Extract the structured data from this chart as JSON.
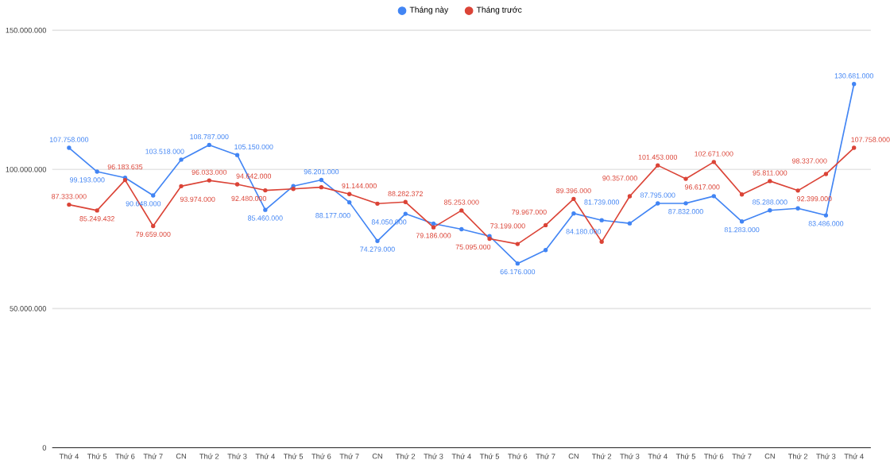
{
  "chart_data": {
    "type": "line",
    "categories": [
      "Thứ 4",
      "Thứ 5",
      "Thứ 6",
      "Thứ 7",
      "CN",
      "Thứ 2",
      "Thứ 3",
      "Thứ 4",
      "Thứ 5",
      "Thứ 6",
      "Thứ 7",
      "CN",
      "Thứ 2",
      "Thứ 3",
      "Thứ 4",
      "Thứ 5",
      "Thứ 6",
      "Thứ 7",
      "CN",
      "Thứ 2",
      "Thứ 3",
      "Thứ 4",
      "Thứ 5",
      "Thứ 6",
      "Thứ 7",
      "CN",
      "Thứ 2",
      "Thứ 3",
      "Thứ 4"
    ],
    "series": [
      {
        "name": "Tháng này",
        "color": "#4285f4",
        "values": [
          107758000,
          99193000,
          97000000,
          90648000,
          103518000,
          108787000,
          105150000,
          85460000,
          94000000,
          96201000,
          88177000,
          74279000,
          84050000,
          80500000,
          78500000,
          76000000,
          66176000,
          71000000,
          84180000,
          81739000,
          80600000,
          87795000,
          87832000,
          90400000,
          81283000,
          85288000,
          86000000,
          83486000,
          130681000
        ],
        "value_labels": [
          "107.758.000",
          "99.193.000",
          null,
          "90.648.000",
          "103.518.000",
          "108.787.000",
          "105.150.000",
          "85.460.000",
          null,
          "96.201.000",
          "88.177.000",
          "74.279.000",
          "84.050.000",
          null,
          null,
          null,
          "66.176.000",
          null,
          "84.180.000",
          "81.739.000",
          null,
          "87.795.000",
          "87.832.000",
          null,
          "81.283.000",
          "85.288.000",
          null,
          "83.486.000",
          "130.681.000"
        ]
      },
      {
        "name": "Tháng trước",
        "color": "#db4437",
        "values": [
          87333000,
          85249432,
          96183635,
          79659000,
          93974000,
          96033000,
          94642000,
          92480000,
          93000000,
          93600000,
          91144000,
          87700000,
          88282372,
          79186000,
          85253000,
          75095000,
          73199000,
          79967000,
          89396000,
          74000000,
          90357000,
          101453000,
          96617000,
          102671000,
          91000000,
          95811000,
          92399000,
          98337000,
          107758000
        ],
        "value_labels": [
          "87.333.000",
          "85.249.432",
          "96.183.635",
          "79.659.000",
          "93.974.000",
          "96.033.000",
          "94.642.000",
          "92.480.000",
          null,
          null,
          "91.144.000",
          null,
          "88.282.372",
          "79.186.000",
          "85.253.000",
          "75.095.000",
          "73.199.000",
          "79.967.000",
          "89.396.000",
          null,
          "90.357.000",
          "101.453.000",
          "96.617.000",
          "102.671.000",
          null,
          "95.811.000",
          "92.399.000",
          "98.337.000",
          "107.758.000"
        ]
      }
    ],
    "ylim": [
      0,
      150000000
    ],
    "yticks": [
      0,
      {
        "value": 50000000,
        "label": "50.000.000"
      },
      {
        "value": 100000000,
        "label": "100.000.000"
      },
      {
        "value": 150000000,
        "label": "150.000.000"
      }
    ],
    "grid": "y",
    "legend": "top",
    "marker": "circle",
    "line_style": "solid"
  }
}
